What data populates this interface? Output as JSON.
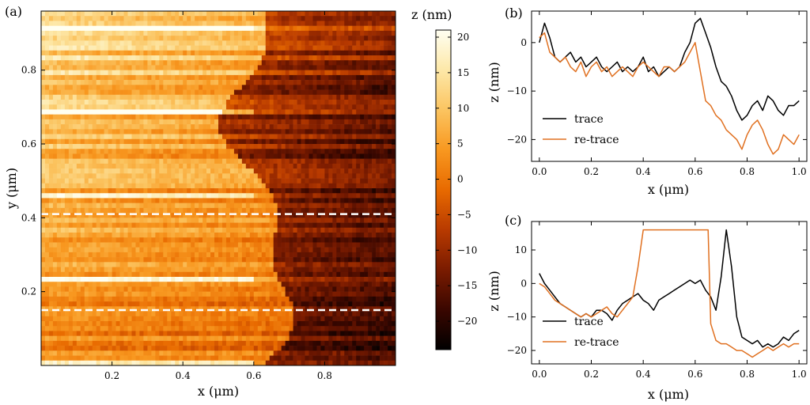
{
  "chart_data": [
    {
      "panel": "(a)",
      "type": "heatmap",
      "title": "",
      "xlabel": "x (μm)",
      "ylabel": "y (μm)",
      "xlim": [
        0,
        1.0
      ],
      "ylim": [
        0,
        0.96
      ],
      "xticks": [
        0.2,
        0.4,
        0.6,
        0.8
      ],
      "yticks": [
        0.2,
        0.4,
        0.6,
        0.8
      ],
      "colorbar": {
        "label": "z (nm)",
        "range": [
          -24,
          21
        ],
        "ticks": [
          20,
          15,
          10,
          5,
          0,
          -5,
          -10,
          -15,
          -20
        ],
        "colors": [
          "#000000",
          "#3a0700",
          "#7a1b00",
          "#b83a00",
          "#e86a00",
          "#f89820",
          "#fbc460",
          "#fde8a8",
          "#fffff2"
        ]
      },
      "description_rows": 72,
      "description_cols": 90,
      "dashed_lines_y": [
        0.41,
        0.15
      ],
      "dashed_color": "#ffffff"
    },
    {
      "panel": "(b)",
      "type": "line",
      "xlabel": "x (μm)",
      "ylabel": "z (nm)",
      "xlim": [
        -0.03,
        1.03
      ],
      "ylim": [
        -24.5,
        6.5
      ],
      "xticks": [
        0.0,
        0.2,
        0.4,
        0.6,
        0.8,
        1.0
      ],
      "yticks": [
        0,
        -10,
        -20
      ],
      "legend": "lower-left",
      "series": [
        {
          "name": "trace",
          "color": "#000000",
          "x": [
            0.0,
            0.02,
            0.04,
            0.06,
            0.08,
            0.1,
            0.12,
            0.14,
            0.16,
            0.18,
            0.2,
            0.22,
            0.24,
            0.26,
            0.28,
            0.3,
            0.32,
            0.34,
            0.36,
            0.38,
            0.4,
            0.42,
            0.44,
            0.46,
            0.48,
            0.5,
            0.52,
            0.54,
            0.56,
            0.58,
            0.6,
            0.62,
            0.64,
            0.66,
            0.68,
            0.7,
            0.72,
            0.74,
            0.76,
            0.78,
            0.8,
            0.82,
            0.84,
            0.86,
            0.88,
            0.9,
            0.92,
            0.94,
            0.96,
            0.98,
            1.0
          ],
          "values": [
            0,
            4,
            1,
            -3,
            -4,
            -3,
            -2,
            -4,
            -3,
            -5,
            -4,
            -3,
            -5,
            -6,
            -5,
            -4,
            -6,
            -5,
            -6,
            -5,
            -3,
            -6,
            -5,
            -7,
            -6,
            -5,
            -6,
            -5,
            -2,
            0,
            4,
            5,
            2,
            -1,
            -5,
            -8,
            -9,
            -11,
            -14,
            -16,
            -15,
            -13,
            -12,
            -14,
            -11,
            -12,
            -14,
            -15,
            -13,
            -13,
            -12
          ]
        },
        {
          "name": "re-trace",
          "color": "#e07020",
          "x": [
            0.0,
            0.02,
            0.04,
            0.06,
            0.08,
            0.1,
            0.12,
            0.14,
            0.16,
            0.18,
            0.2,
            0.22,
            0.24,
            0.26,
            0.28,
            0.3,
            0.32,
            0.34,
            0.36,
            0.38,
            0.4,
            0.42,
            0.44,
            0.46,
            0.48,
            0.5,
            0.52,
            0.54,
            0.56,
            0.58,
            0.6,
            0.62,
            0.64,
            0.66,
            0.68,
            0.7,
            0.72,
            0.74,
            0.76,
            0.78,
            0.8,
            0.82,
            0.84,
            0.86,
            0.88,
            0.9,
            0.92,
            0.94,
            0.96,
            0.98,
            1.0
          ],
          "values": [
            1,
            2,
            -2,
            -3,
            -4,
            -3,
            -5,
            -6,
            -4,
            -7,
            -5,
            -4,
            -6,
            -5,
            -7,
            -6,
            -5,
            -6,
            -7,
            -5,
            -4,
            -5,
            -6,
            -7,
            -5,
            -5,
            -6,
            -5,
            -4,
            -2,
            0,
            -6,
            -12,
            -13,
            -15,
            -16,
            -18,
            -19,
            -20,
            -22,
            -19,
            -17,
            -16,
            -18,
            -21,
            -23,
            -22,
            -19,
            -20,
            -21,
            -19
          ]
        }
      ]
    },
    {
      "panel": "(c)",
      "type": "line",
      "xlabel": "x (μm)",
      "ylabel": "z (nm)",
      "xlim": [
        -0.03,
        1.03
      ],
      "ylim": [
        -24,
        18.5
      ],
      "xticks": [
        0.0,
        0.2,
        0.4,
        0.6,
        0.8,
        1.0
      ],
      "yticks": [
        10,
        0,
        -10,
        -20
      ],
      "legend": "lower-left",
      "series": [
        {
          "name": "trace",
          "color": "#000000",
          "x": [
            0.0,
            0.02,
            0.04,
            0.06,
            0.08,
            0.1,
            0.12,
            0.14,
            0.16,
            0.18,
            0.2,
            0.22,
            0.24,
            0.26,
            0.28,
            0.3,
            0.32,
            0.34,
            0.36,
            0.38,
            0.4,
            0.42,
            0.44,
            0.46,
            0.48,
            0.5,
            0.52,
            0.54,
            0.56,
            0.58,
            0.6,
            0.62,
            0.64,
            0.66,
            0.68,
            0.7,
            0.72,
            0.74,
            0.76,
            0.78,
            0.8,
            0.82,
            0.84,
            0.86,
            0.88,
            0.9,
            0.92,
            0.94,
            0.96,
            0.98,
            1.0
          ],
          "values": [
            3,
            0,
            -2,
            -4,
            -6,
            -7,
            -8,
            -9,
            -10,
            -9,
            -10,
            -8,
            -8,
            -9,
            -11,
            -8,
            -6,
            -5,
            -4,
            -3,
            -5,
            -6,
            -8,
            -5,
            -4,
            -3,
            -2,
            -1,
            0,
            1,
            0,
            1,
            -2,
            -4,
            -8,
            2,
            16,
            5,
            -10,
            -16,
            -17,
            -18,
            -17,
            -19,
            -18,
            -19,
            -18,
            -16,
            -17,
            -15,
            -14
          ]
        },
        {
          "name": "re-trace",
          "color": "#e07020",
          "x": [
            0.0,
            0.02,
            0.04,
            0.06,
            0.08,
            0.1,
            0.12,
            0.14,
            0.16,
            0.18,
            0.2,
            0.22,
            0.24,
            0.26,
            0.28,
            0.3,
            0.32,
            0.34,
            0.36,
            0.38,
            0.4,
            0.42,
            0.44,
            0.46,
            0.48,
            0.5,
            0.52,
            0.54,
            0.56,
            0.58,
            0.6,
            0.62,
            0.64,
            0.65,
            0.66,
            0.68,
            0.7,
            0.72,
            0.74,
            0.76,
            0.78,
            0.8,
            0.82,
            0.84,
            0.86,
            0.88,
            0.9,
            0.92,
            0.94,
            0.96,
            0.98,
            1.0
          ],
          "values": [
            0,
            -1,
            -3,
            -5,
            -6,
            -7,
            -8,
            -9,
            -10,
            -9,
            -10,
            -9,
            -8,
            -7,
            -9,
            -10,
            -8,
            -6,
            -4,
            5,
            16,
            16,
            16,
            16,
            16,
            16,
            16,
            16,
            16,
            16,
            16,
            16,
            16,
            16,
            -12,
            -17,
            -18,
            -18,
            -19,
            -20,
            -20,
            -21,
            -22,
            -21,
            -20,
            -19,
            -20,
            -19,
            -18,
            -19,
            -18,
            -18
          ]
        }
      ]
    }
  ],
  "labels": {
    "panel_a": "(a)",
    "panel_b": "(b)",
    "panel_c": "(c)",
    "x_axis": "x (μm)",
    "y_axis": "y (μm)",
    "z_axis": "z (nm)",
    "legend_trace": "trace",
    "legend_retrace": "re-trace"
  }
}
